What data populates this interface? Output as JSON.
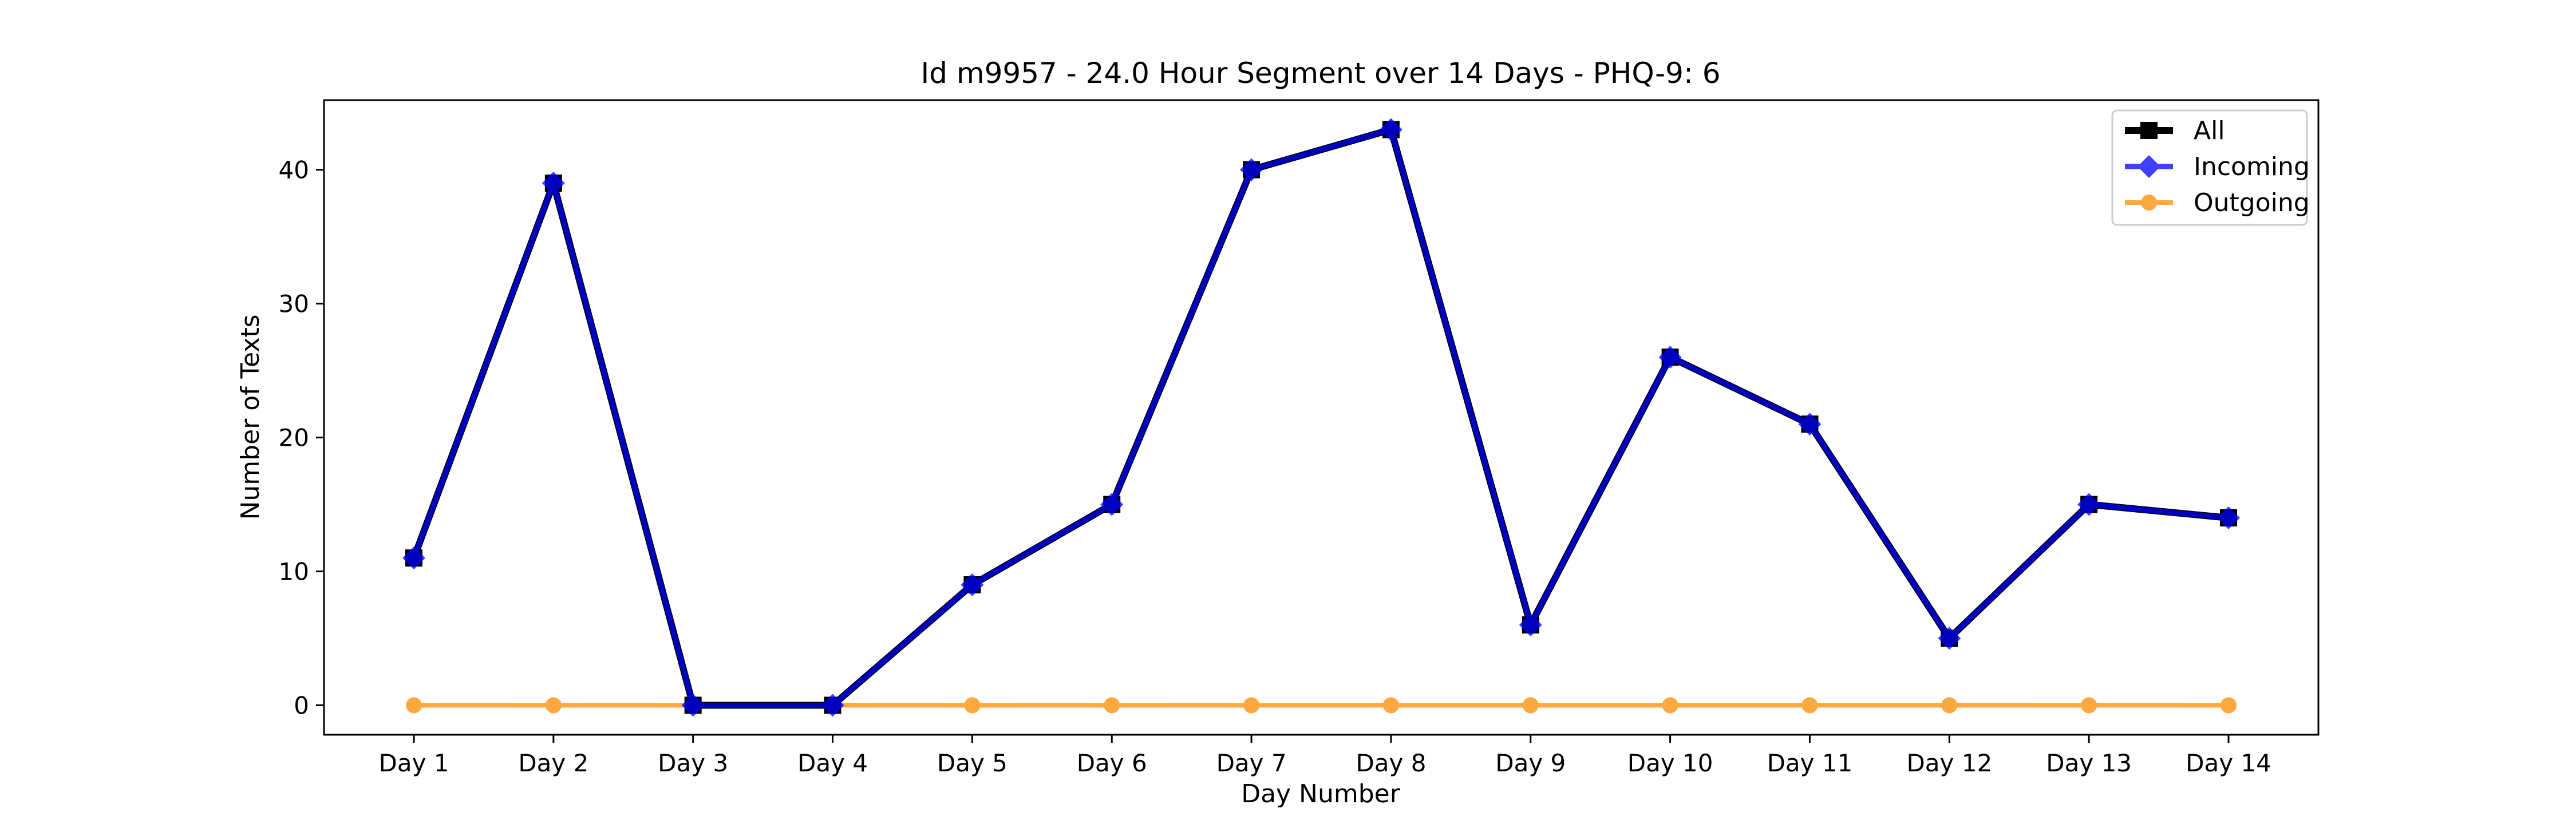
{
  "chart_data": {
    "type": "line",
    "title": "Id m9957 - 24.0 Hour Segment over 14 Days - PHQ-9: 6",
    "xlabel": "Day Number",
    "ylabel": "Number of Texts",
    "categories": [
      "Day 1",
      "Day 2",
      "Day 3",
      "Day 4",
      "Day 5",
      "Day 6",
      "Day 7",
      "Day 8",
      "Day 9",
      "Day 10",
      "Day 11",
      "Day 12",
      "Day 13",
      "Day 14"
    ],
    "ylim": [
      -2.2,
      45.2
    ],
    "yticks": [
      0,
      10,
      20,
      30,
      40
    ],
    "grid": false,
    "legend_position": "top-right",
    "series": [
      {
        "name": "All",
        "color": "#000000",
        "marker": "square",
        "values": [
          11,
          39,
          0,
          0,
          9,
          15,
          40,
          43,
          6,
          26,
          21,
          5,
          15,
          14
        ]
      },
      {
        "name": "Incoming",
        "color": "#0000ff",
        "marker": "diamond",
        "values": [
          11,
          39,
          0,
          0,
          9,
          15,
          40,
          43,
          6,
          26,
          21,
          5,
          15,
          14
        ]
      },
      {
        "name": "Outgoing",
        "color": "#ff8c00",
        "marker": "circle",
        "values": [
          0,
          0,
          0,
          0,
          0,
          0,
          0,
          0,
          0,
          0,
          0,
          0,
          0,
          0
        ]
      }
    ]
  }
}
